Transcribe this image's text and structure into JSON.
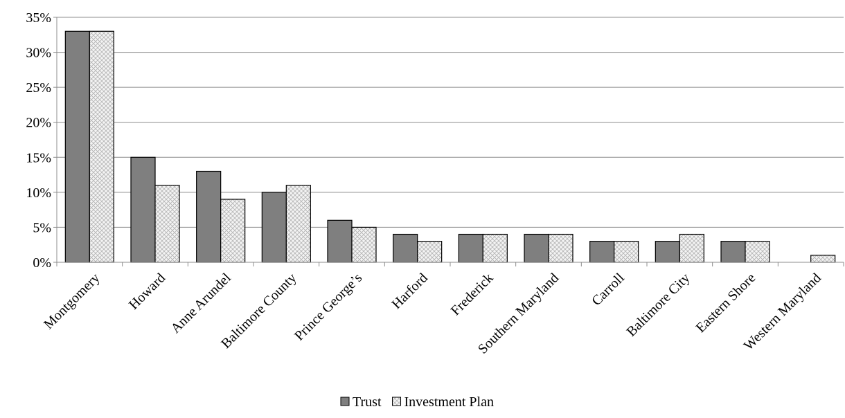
{
  "chart_data": {
    "type": "bar",
    "title": "",
    "xlabel": "",
    "ylabel": "",
    "ylim": [
      0,
      35
    ],
    "y_tick_values": [
      0,
      5,
      10,
      15,
      20,
      25,
      30,
      35
    ],
    "y_tick_labels": [
      "0%",
      "5%",
      "10%",
      "15%",
      "20%",
      "25%",
      "30%",
      "35%"
    ],
    "grid": "horizontal",
    "legend_position": "bottom",
    "categories": [
      "Montgomery",
      "Howard",
      "Anne Arundel",
      "Baltimore County",
      "Prince George’s",
      "Harford",
      "Frederick",
      "Southern Maryland",
      "Carroll",
      "Baltimore City",
      "Eastern Shore",
      "Western Maryland"
    ],
    "series": [
      {
        "name": "Trust",
        "values": [
          33,
          15,
          13,
          10,
          6,
          4,
          4,
          4,
          3,
          3,
          3,
          null
        ],
        "color": "#7f7f7f",
        "pattern": "solid"
      },
      {
        "name": "Investment Plan",
        "values": [
          33,
          11,
          9,
          11,
          5,
          3,
          4,
          4,
          3,
          4,
          3,
          1
        ],
        "color": "#e8e8e8",
        "pattern": "crosshatch"
      }
    ]
  }
}
